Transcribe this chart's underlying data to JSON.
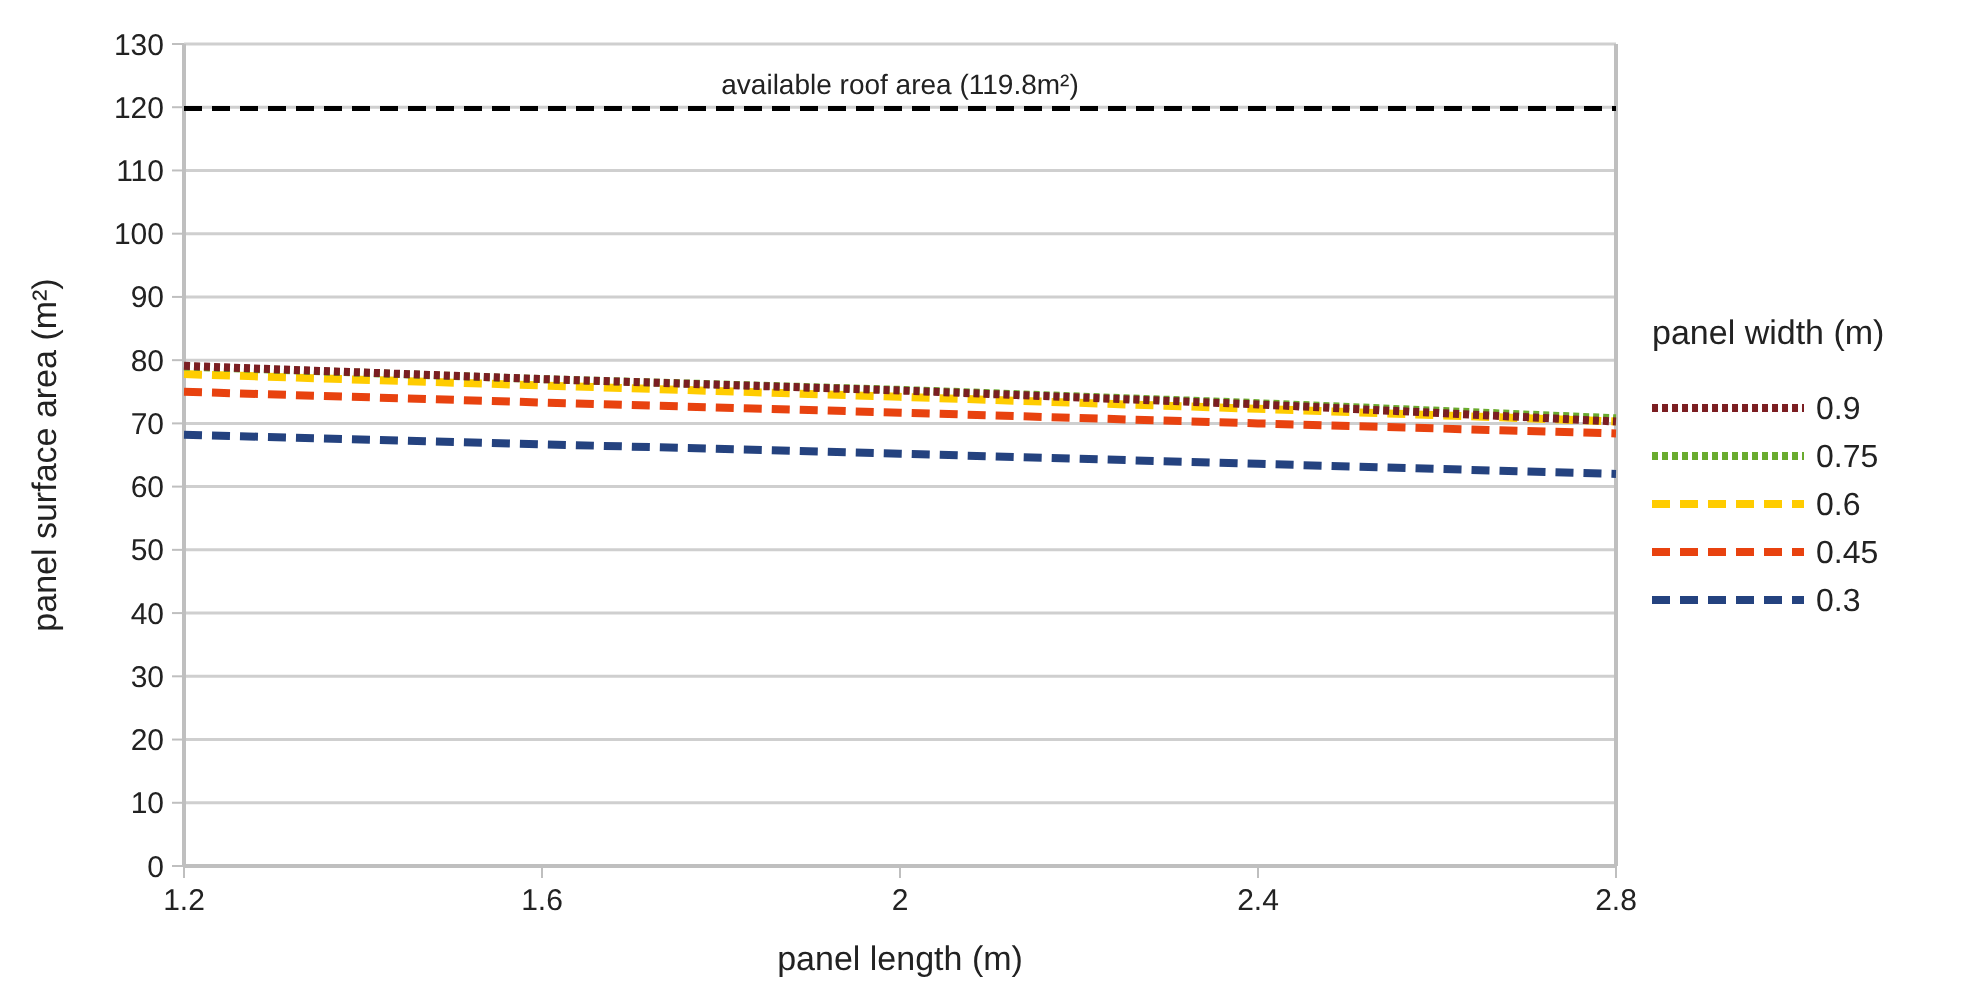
{
  "chart_data": {
    "type": "line",
    "xlabel": "panel length (m)",
    "ylabel": "panel surface area (m²)",
    "legend_title": "panel width (m)",
    "x": [
      1.2,
      1.6,
      2.0,
      2.4,
      2.8
    ],
    "series": [
      {
        "name": "0.9",
        "color": "#7b1e22",
        "line_style": "dotted",
        "values": [
          79.1,
          77,
          75.2,
          73,
          70.3
        ]
      },
      {
        "name": "0.75",
        "color": "#6aab2e",
        "line_style": "dotted",
        "values": [
          79,
          77,
          75.3,
          73.2,
          70.8
        ]
      },
      {
        "name": "0.6",
        "color": "#ffcc00",
        "line_style": "dashed",
        "values": [
          77.8,
          76,
          74.2,
          72.3,
          70.3
        ]
      },
      {
        "name": "0.45",
        "color": "#e8420f",
        "line_style": "dashed",
        "values": [
          75,
          73.3,
          71.7,
          70,
          68.4
        ]
      },
      {
        "name": "0.3",
        "color": "#24427f",
        "line_style": "dashed",
        "values": [
          68.2,
          66.7,
          65.2,
          63.6,
          62
        ]
      }
    ],
    "xlim": [
      1.2,
      2.8
    ],
    "xticks": [
      1.2,
      1.6,
      2,
      2.4,
      2.8
    ],
    "ylim": [
      0,
      130
    ],
    "yticks": [
      0,
      10,
      20,
      30,
      40,
      50,
      60,
      70,
      80,
      90,
      100,
      110,
      120,
      130
    ],
    "ref_lines": [
      {
        "axis": "y",
        "value": 119.8,
        "label": "available roof area (119.8m²)",
        "color": "#000000",
        "line_style": "dashed"
      }
    ],
    "grid": "y",
    "legend": "right"
  }
}
